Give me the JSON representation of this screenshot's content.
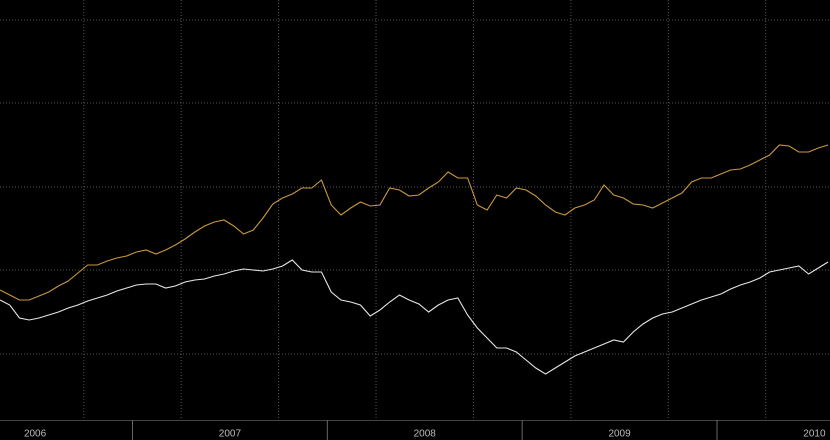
{
  "chart_data": {
    "type": "line",
    "x": [
      2006.32,
      2006.37,
      2006.42,
      2006.47,
      2006.52,
      2006.57,
      2006.62,
      2006.67,
      2006.72,
      2006.77,
      2006.82,
      2006.87,
      2006.92,
      2006.97,
      2007.02,
      2007.07,
      2007.12,
      2007.17,
      2007.22,
      2007.27,
      2007.32,
      2007.37,
      2007.42,
      2007.47,
      2007.52,
      2007.57,
      2007.62,
      2007.67,
      2007.72,
      2007.77,
      2007.82,
      2007.87,
      2007.92,
      2007.97,
      2008.02,
      2008.07,
      2008.12,
      2008.17,
      2008.22,
      2008.27,
      2008.32,
      2008.37,
      2008.42,
      2008.47,
      2008.52,
      2008.57,
      2008.62,
      2008.67,
      2008.72,
      2008.77,
      2008.82,
      2008.87,
      2008.92,
      2008.97,
      2009.02,
      2009.07,
      2009.12,
      2009.17,
      2009.22,
      2009.27,
      2009.32,
      2009.37,
      2009.42,
      2009.47,
      2009.52,
      2009.57,
      2009.62,
      2009.67,
      2009.72,
      2009.77,
      2009.82,
      2009.87,
      2009.92,
      2009.97,
      2010.02,
      2010.07,
      2010.12,
      2010.17,
      2010.22,
      2010.27,
      2010.32,
      2010.37,
      2010.42,
      2010.47,
      2010.52,
      2010.57
    ],
    "series": [
      {
        "color": "#c9993c",
        "values": [
          130,
          125,
          120,
          120,
          124,
          128,
          134,
          139,
          147,
          155,
          155,
          159,
          162,
          164,
          168,
          170,
          166,
          170,
          175,
          181,
          188,
          194,
          198,
          200,
          194,
          186,
          190,
          202,
          216,
          222,
          226,
          232,
          232,
          240,
          215,
          205,
          212,
          218,
          214,
          215,
          232,
          230,
          224,
          225,
          232,
          238,
          248,
          242,
          242,
          215,
          210,
          225,
          222,
          232,
          230,
          224,
          215,
          208,
          205,
          212,
          215,
          220,
          235,
          225,
          222,
          216,
          215,
          212,
          217,
          222,
          227,
          238,
          242,
          242,
          246,
          250,
          251,
          255,
          260,
          265,
          275,
          274,
          268,
          268,
          272,
          275
        ]
      },
      {
        "color": "#e6e6e6",
        "values": [
          120,
          115,
          102,
          100,
          102,
          105,
          108,
          112,
          115,
          119,
          122,
          125,
          129,
          132,
          135,
          136,
          136,
          132,
          134,
          138,
          140,
          141,
          144,
          146,
          149,
          151,
          150,
          149,
          151,
          154,
          160,
          150,
          148,
          148,
          128,
          120,
          118,
          115,
          104,
          110,
          118,
          125,
          120,
          116,
          108,
          115,
          120,
          122,
          105,
          92,
          82,
          72,
          72,
          68,
          60,
          52,
          46,
          52,
          58,
          64,
          68,
          72,
          76,
          80,
          78,
          88,
          96,
          102,
          106,
          108,
          112,
          116,
          120,
          123,
          126,
          131,
          135,
          138,
          142,
          148,
          150,
          152,
          154,
          146,
          152,
          158
        ]
      }
    ],
    "xlim": [
      2006.32,
      2010.58
    ],
    "xticks": [
      {
        "value": 2006.5,
        "label": "2006"
      },
      {
        "value": 2007.5,
        "label": "2007"
      },
      {
        "value": 2008.5,
        "label": "2008"
      },
      {
        "value": 2009.5,
        "label": "2009"
      },
      {
        "value": 2010.5,
        "label": "2010"
      }
    ],
    "xgrid": [
      2006.75,
      2007.25,
      2007.75,
      2008.25,
      2008.75,
      2009.25,
      2009.75,
      2010.25
    ],
    "xseparators": [
      2007,
      2008,
      2009,
      2010
    ],
    "ylim": [
      0,
      420
    ],
    "ygrid": [
      66,
      150,
      233,
      317,
      400
    ]
  }
}
